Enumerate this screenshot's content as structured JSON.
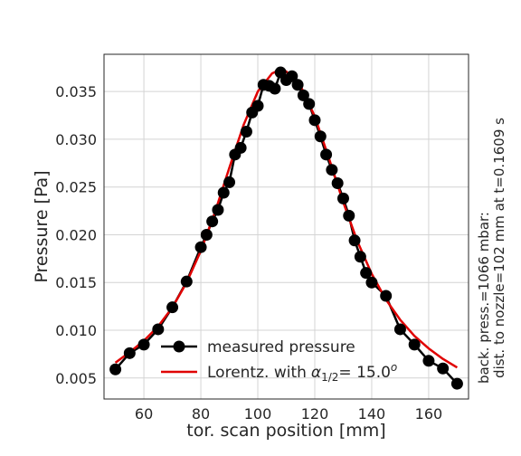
{
  "chart_data": {
    "type": "line",
    "xlabel": "tor. scan position [mm]",
    "ylabel": "Pressure [Pa]",
    "xlim": [
      46,
      174
    ],
    "ylim": [
      0.0028,
      0.0389
    ],
    "xticks": [
      "60",
      "80",
      "100",
      "120",
      "140",
      "160"
    ],
    "yticks": [
      "0.005",
      "0.010",
      "0.015",
      "0.020",
      "0.025",
      "0.030",
      "0.035"
    ],
    "grid": true,
    "legend_position": "lower-left",
    "side_note_lines": [
      "back. press.=1066 mbar:",
      "dist. to nozzle=102 mm at t=0.1609 s"
    ],
    "series": [
      {
        "name": "measured pressure",
        "color": "#000000",
        "marker": "circle",
        "x": [
          50,
          55,
          60,
          65,
          70,
          75,
          80,
          82,
          84,
          86,
          88,
          90,
          92,
          94,
          96,
          98,
          100,
          102,
          104,
          106,
          108,
          110,
          112,
          114,
          116,
          118,
          120,
          122,
          124,
          126,
          128,
          130,
          132,
          134,
          136,
          138,
          140,
          145,
          150,
          155,
          160,
          165,
          170
        ],
        "y": [
          0.0059,
          0.0076,
          0.0085,
          0.0101,
          0.0124,
          0.0151,
          0.0187,
          0.02,
          0.0214,
          0.0226,
          0.0244,
          0.0255,
          0.0284,
          0.0291,
          0.0308,
          0.0328,
          0.0335,
          0.0357,
          0.0356,
          0.0353,
          0.037,
          0.0362,
          0.0366,
          0.0357,
          0.0346,
          0.0337,
          0.032,
          0.0303,
          0.0284,
          0.0268,
          0.0254,
          0.0238,
          0.022,
          0.0194,
          0.0177,
          0.016,
          0.015,
          0.0136,
          0.0101,
          0.0085,
          0.0068,
          0.006,
          0.0044
        ]
      },
      {
        "name": "Lorentz. with",
        "name_math": "α",
        "name_math_sub": "1/2",
        "name_value": "= 15.0",
        "name_value_sup": "o",
        "color": "#e00000",
        "marker": "none",
        "x": [
          50,
          55,
          60,
          65,
          70,
          75,
          80,
          85,
          90,
          95,
          100,
          105,
          108,
          110,
          115,
          120,
          125,
          130,
          135,
          140,
          145,
          150,
          155,
          160,
          165,
          170
        ],
        "y": [
          0.0066,
          0.0077,
          0.0089,
          0.0104,
          0.0124,
          0.015,
          0.0183,
          0.0224,
          0.027,
          0.0315,
          0.035,
          0.0369,
          0.0373,
          0.0371,
          0.0356,
          0.0324,
          0.028,
          0.0234,
          0.0193,
          0.0159,
          0.0132,
          0.0111,
          0.0094,
          0.0081,
          0.007,
          0.0061
        ]
      }
    ]
  }
}
